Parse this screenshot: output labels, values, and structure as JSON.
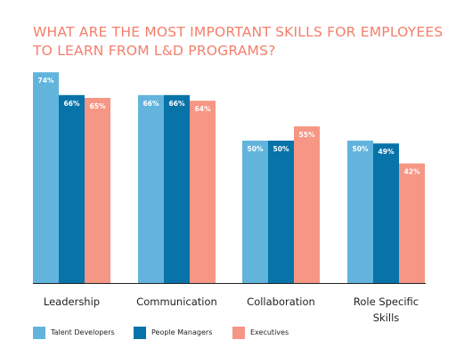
{
  "title_lines": [
    "WHAT ARE THE MOST IMPORTANT SKILLS FOR EMPLOYEES",
    "TO LEARN FROM L&D PROGRAMS?"
  ],
  "colors": {
    "title": "#f47f6c",
    "talent": "#62b4dd",
    "managers": "#0873a8",
    "executives": "#f69684",
    "axis": "#222222"
  },
  "chart_data": {
    "type": "bar",
    "title": "WHAT ARE THE MOST IMPORTANT SKILLS FOR EMPLOYEES TO LEARN FROM L&D PROGRAMS?",
    "categories": [
      "Leadership",
      "Communication",
      "Collaboration",
      "Role Specific Skills"
    ],
    "category_lines": [
      [
        "Leadership"
      ],
      [
        "Communication"
      ],
      [
        "Collaboration"
      ],
      [
        "Role Specific",
        "Skills"
      ]
    ],
    "series": [
      {
        "name": "Talent Developers",
        "values": [
          74,
          66,
          50,
          50
        ],
        "labels": [
          "74%",
          "66%",
          "50%",
          "50%"
        ],
        "color": "#62b4dd"
      },
      {
        "name": "People Managers",
        "values": [
          66,
          66,
          50,
          49
        ],
        "labels": [
          "66%",
          "66%",
          "50%",
          "49%"
        ],
        "color": "#0873a8"
      },
      {
        "name": "Executives",
        "values": [
          65,
          64,
          55,
          42
        ],
        "labels": [
          "65%",
          "64%",
          "55%",
          "42%"
        ],
        "color": "#f69684"
      }
    ],
    "unit": "%",
    "grid": false,
    "legend_position": "bottom-left"
  },
  "legend": [
    {
      "label": "Talent Developers",
      "color": "#62b4dd"
    },
    {
      "label": "People Managers",
      "color": "#0873a8"
    },
    {
      "label": "Executives",
      "color": "#f69684"
    }
  ]
}
